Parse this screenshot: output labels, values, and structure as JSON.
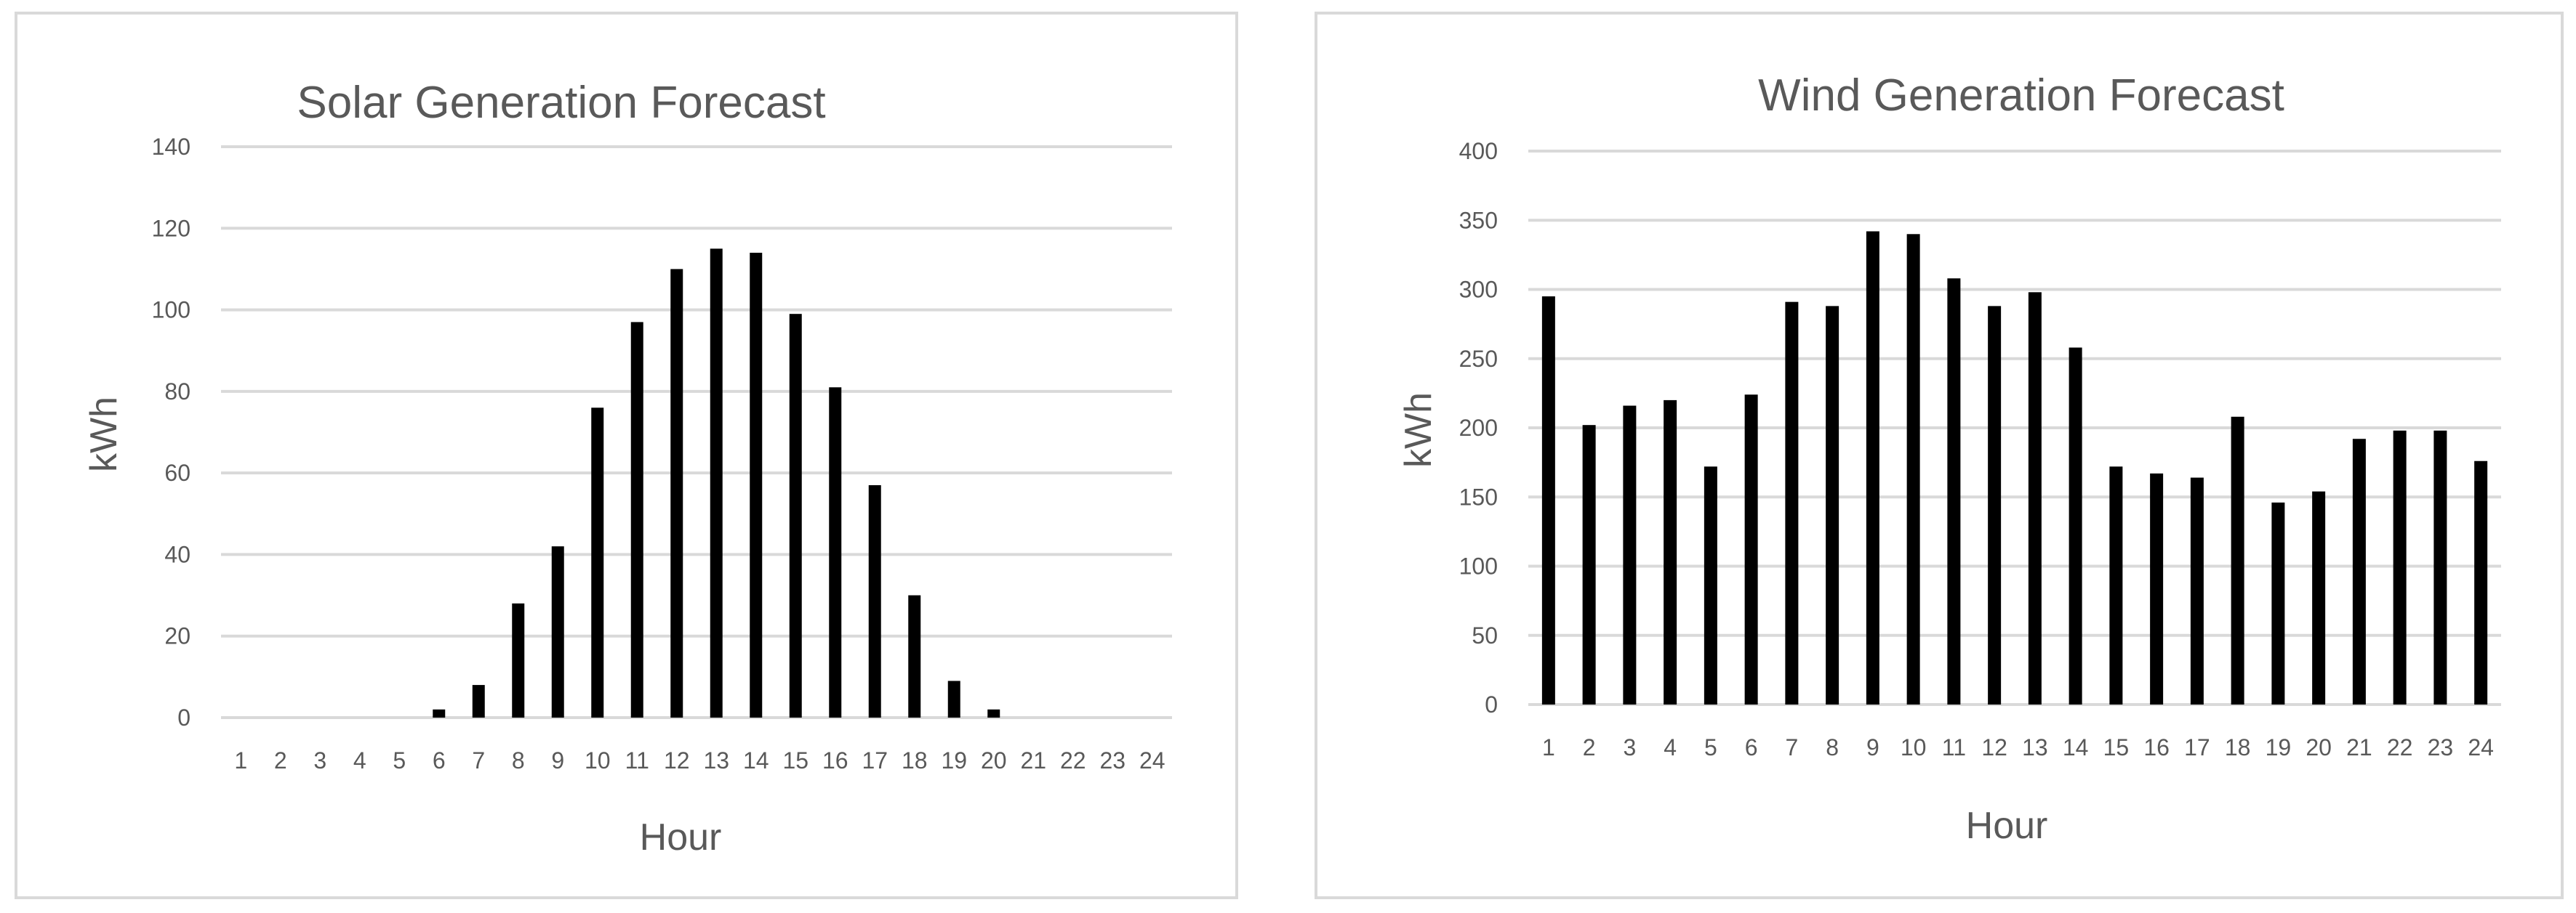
{
  "chart_data": [
    {
      "type": "bar",
      "title": "Solar Generation Forecast",
      "xlabel": "Hour",
      "ylabel": "kWh",
      "categories": [
        "1",
        "2",
        "3",
        "4",
        "5",
        "6",
        "7",
        "8",
        "9",
        "10",
        "11",
        "12",
        "13",
        "14",
        "15",
        "16",
        "17",
        "18",
        "19",
        "20",
        "21",
        "22",
        "23",
        "24"
      ],
      "values": [
        0,
        0,
        0,
        0,
        0,
        2,
        8,
        28,
        42,
        76,
        97,
        110,
        115,
        114,
        99,
        81,
        57,
        30,
        9,
        2,
        0,
        0,
        0,
        0
      ],
      "ylim": [
        0,
        140
      ],
      "yticks": [
        0,
        20,
        40,
        60,
        80,
        100,
        120,
        140
      ],
      "grid": true,
      "legend": "none",
      "bar_color": "#000000"
    },
    {
      "type": "bar",
      "title": "Wind Generation Forecast",
      "xlabel": "Hour",
      "ylabel": "kWh",
      "categories": [
        "1",
        "2",
        "3",
        "4",
        "5",
        "6",
        "7",
        "8",
        "9",
        "10",
        "11",
        "12",
        "13",
        "14",
        "15",
        "16",
        "17",
        "18",
        "19",
        "20",
        "21",
        "22",
        "23",
        "24"
      ],
      "values": [
        295,
        202,
        216,
        220,
        172,
        224,
        291,
        288,
        342,
        340,
        308,
        288,
        298,
        258,
        172,
        167,
        164,
        208,
        146,
        154,
        192,
        198,
        198,
        176
      ],
      "ylim": [
        0,
        400
      ],
      "yticks": [
        0,
        50,
        100,
        150,
        200,
        250,
        300,
        350,
        400
      ],
      "grid": true,
      "legend": "none",
      "bar_color": "#000000"
    }
  ]
}
